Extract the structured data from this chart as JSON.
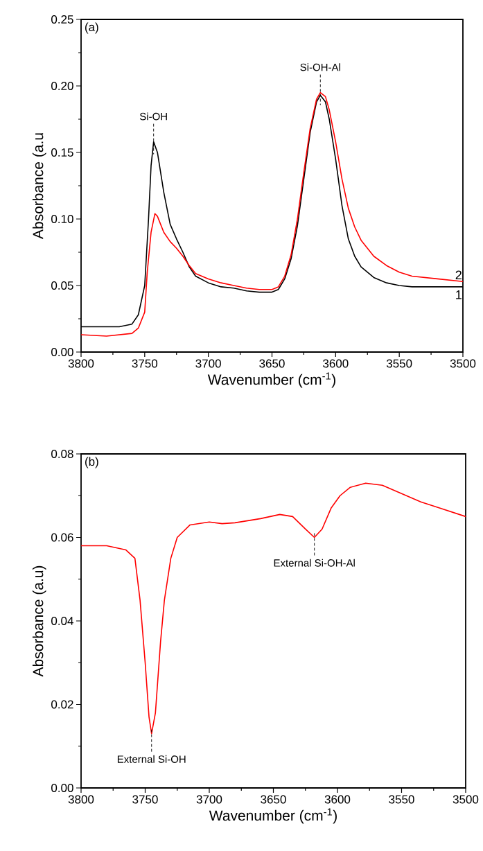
{
  "chart_data": [
    {
      "type": "line",
      "title": "(a)",
      "xlabel": "Wavenumber (cm$^{-1}$)",
      "ylabel": "Absorbance (a.u",
      "xlim": [
        3800,
        3500
      ],
      "xticks": [
        3800,
        3750,
        3700,
        3650,
        3600,
        3550,
        3500
      ],
      "ylim": [
        0,
        0.25
      ],
      "yticks": [
        {
          "value": 0,
          "label": "0.00"
        },
        {
          "value": 0.05,
          "label": "0.05"
        },
        {
          "value": 0.1,
          "label": "0.10"
        },
        {
          "value": 0.15,
          "label": "0.15"
        },
        {
          "value": 0.2,
          "label": "0.20"
        },
        {
          "value": 0.25,
          "label": "0.25"
        }
      ],
      "series": [
        {
          "name": "1",
          "color": "#000000",
          "x": [
            3800,
            3780,
            3770,
            3760,
            3755,
            3750,
            3747,
            3745,
            3743,
            3740,
            3735,
            3730,
            3725,
            3720,
            3715,
            3710,
            3700,
            3690,
            3680,
            3670,
            3660,
            3650,
            3645,
            3640,
            3635,
            3630,
            3625,
            3620,
            3615,
            3612,
            3608,
            3605,
            3600,
            3595,
            3590,
            3585,
            3580,
            3570,
            3560,
            3550,
            3540,
            3520,
            3500
          ],
          "values": [
            0.019,
            0.019,
            0.019,
            0.021,
            0.028,
            0.05,
            0.1,
            0.14,
            0.158,
            0.15,
            0.12,
            0.096,
            0.085,
            0.075,
            0.064,
            0.057,
            0.052,
            0.049,
            0.048,
            0.046,
            0.045,
            0.045,
            0.047,
            0.055,
            0.07,
            0.095,
            0.13,
            0.165,
            0.188,
            0.193,
            0.188,
            0.175,
            0.145,
            0.11,
            0.085,
            0.072,
            0.064,
            0.056,
            0.052,
            0.05,
            0.049,
            0.049,
            0.049
          ]
        },
        {
          "name": "2",
          "color": "#ff0000",
          "x": [
            3800,
            3780,
            3760,
            3755,
            3750,
            3748,
            3745,
            3742,
            3740,
            3735,
            3730,
            3725,
            3720,
            3715,
            3710,
            3700,
            3690,
            3685,
            3680,
            3670,
            3660,
            3650,
            3645,
            3640,
            3635,
            3630,
            3625,
            3620,
            3615,
            3612,
            3608,
            3605,
            3600,
            3595,
            3590,
            3585,
            3580,
            3570,
            3560,
            3550,
            3540,
            3520,
            3500
          ],
          "values": [
            0.013,
            0.012,
            0.014,
            0.018,
            0.03,
            0.06,
            0.09,
            0.104,
            0.102,
            0.09,
            0.083,
            0.078,
            0.072,
            0.065,
            0.059,
            0.055,
            0.052,
            0.051,
            0.05,
            0.048,
            0.047,
            0.047,
            0.049,
            0.057,
            0.073,
            0.1,
            0.135,
            0.168,
            0.19,
            0.195,
            0.192,
            0.182,
            0.158,
            0.13,
            0.108,
            0.094,
            0.084,
            0.072,
            0.065,
            0.06,
            0.057,
            0.055,
            0.053
          ]
        }
      ],
      "annotations": [
        {
          "text": "Si-OH",
          "x": 3743,
          "y": 0.158
        },
        {
          "text": "Si-OH-Al",
          "x": 3612,
          "y": 0.195
        }
      ]
    },
    {
      "type": "line",
      "title": "(b)",
      "xlabel": "Wavenumber (cm$^{-1}$)",
      "ylabel": "Absorbance (a.u)",
      "xlim": [
        3800,
        3500
      ],
      "xticks": [
        3800,
        3750,
        3700,
        3650,
        3600,
        3550,
        3500
      ],
      "ylim": [
        0,
        0.08
      ],
      "yticks": [
        {
          "value": 0,
          "label": "0.00"
        },
        {
          "value": 0.02,
          "label": "0.02"
        },
        {
          "value": 0.04,
          "label": "0.04"
        },
        {
          "value": 0.06,
          "label": "0.06"
        },
        {
          "value": 0.08,
          "label": "0.08"
        }
      ],
      "series": [
        {
          "color": "#ff0000",
          "x": [
            3800,
            3780,
            3765,
            3758,
            3754,
            3750,
            3747,
            3745,
            3742,
            3738,
            3735,
            3730,
            3725,
            3715,
            3700,
            3690,
            3680,
            3660,
            3645,
            3635,
            3625,
            3618,
            3612,
            3605,
            3598,
            3590,
            3578,
            3565,
            3550,
            3535,
            3520,
            3500
          ],
          "values": [
            0.058,
            0.058,
            0.057,
            0.055,
            0.045,
            0.03,
            0.017,
            0.013,
            0.018,
            0.035,
            0.045,
            0.055,
            0.06,
            0.063,
            0.0637,
            0.0633,
            0.0635,
            0.0645,
            0.0655,
            0.065,
            0.062,
            0.06,
            0.062,
            0.067,
            0.07,
            0.072,
            0.073,
            0.0725,
            0.0705,
            0.0685,
            0.067,
            0.065
          ]
        }
      ],
      "annotations": [
        {
          "text": "External Si-OH",
          "x": 3745,
          "y": 0.013
        },
        {
          "text": "External Si-OH-Al",
          "x": 3618,
          "y": 0.06
        }
      ]
    }
  ]
}
